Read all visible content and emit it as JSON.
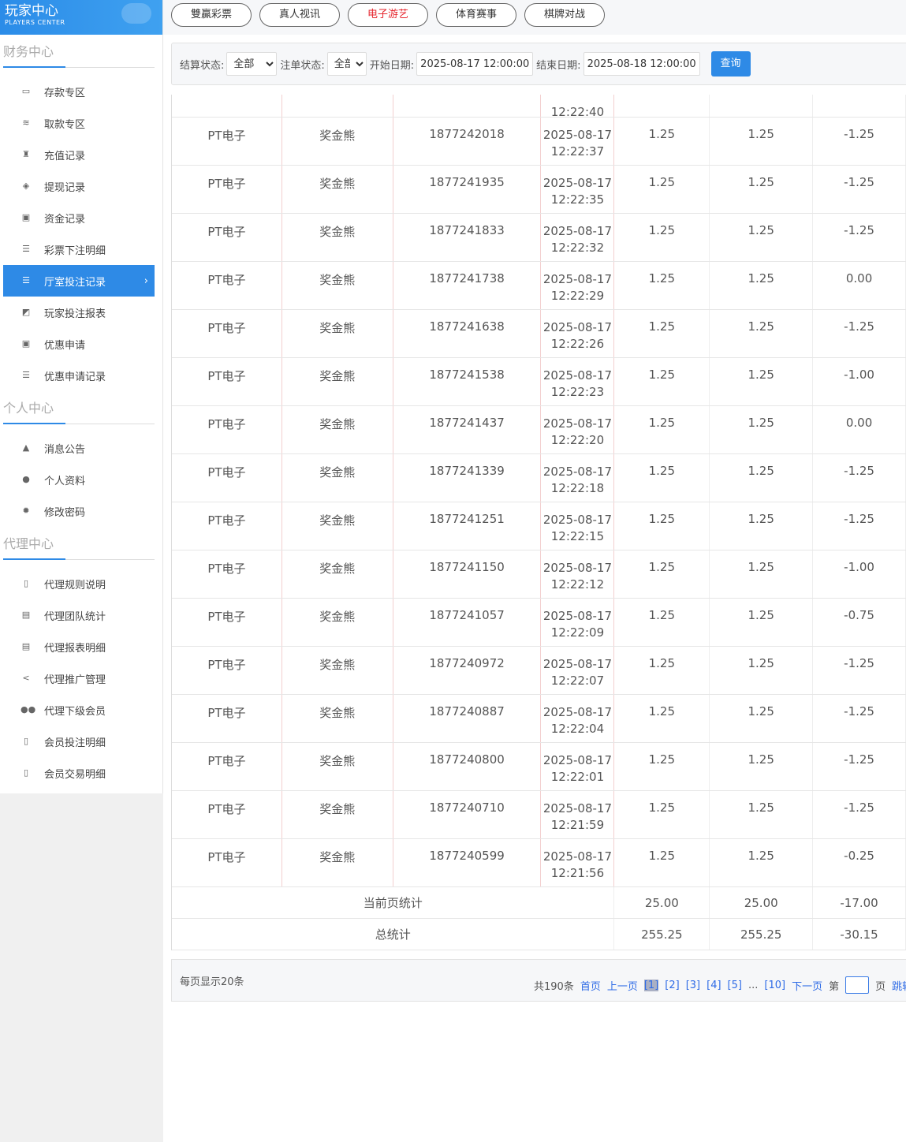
{
  "logo": {
    "title": "玩家中心",
    "subtitle": "PLAYERS CENTER"
  },
  "tabs": [
    {
      "label": "雙贏彩票",
      "color": "#333"
    },
    {
      "label": "真人视讯",
      "color": "#333"
    },
    {
      "label": "电子游艺",
      "color": "#e6262e"
    },
    {
      "label": "体育赛事",
      "color": "#333"
    },
    {
      "label": "棋牌对战",
      "color": "#333"
    }
  ],
  "sidebar": {
    "finance": {
      "title": "财务中心",
      "items": [
        {
          "label": "存款专区",
          "icon": "card-icon"
        },
        {
          "label": "取款专区",
          "icon": "cash-icon"
        },
        {
          "label": "充值记录",
          "icon": "bag-icon"
        },
        {
          "label": "提现记录",
          "icon": "withdraw-icon"
        },
        {
          "label": "资金记录",
          "icon": "money-icon"
        },
        {
          "label": "彩票下注明细",
          "icon": "list-icon"
        },
        {
          "label": "厅室投注记录",
          "icon": "list-icon",
          "active": true
        },
        {
          "label": "玩家投注报表",
          "icon": "chart-icon"
        },
        {
          "label": "优惠申请",
          "icon": "gift-icon"
        },
        {
          "label": "优惠申请记录",
          "icon": "list-icon"
        }
      ]
    },
    "personal": {
      "title": "个人中心",
      "items": [
        {
          "label": "消息公告",
          "icon": "bell-icon"
        },
        {
          "label": "个人资料",
          "icon": "user-icon"
        },
        {
          "label": "修改密码",
          "icon": "gear-icon"
        }
      ]
    },
    "agent": {
      "title": "代理中心",
      "items": [
        {
          "label": "代理规则说明",
          "icon": "document-icon"
        },
        {
          "label": "代理团队统计",
          "icon": "report-icon"
        },
        {
          "label": "代理报表明细",
          "icon": "report-icon"
        },
        {
          "label": "代理推广管理",
          "icon": "share-icon"
        },
        {
          "label": "代理下级会员",
          "icon": "users-icon"
        },
        {
          "label": "会员投注明细",
          "icon": "document-icon"
        },
        {
          "label": "会员交易明细",
          "icon": "document-icon"
        }
      ]
    }
  },
  "filter": {
    "settle_label": "结算状态:",
    "settle_value": "全部",
    "order_label": "注单状态:",
    "order_value": "全部",
    "start_label": "开始日期:",
    "start_value": "2025-08-17 12:00:00",
    "end_label": "结束日期:",
    "end_value": "2025-08-18 12:00:00",
    "query": "查询"
  },
  "table": {
    "partial_time": "12:22:40",
    "rows": [
      [
        "PT电子",
        "奖金熊",
        "1877242018",
        "2025-08-17",
        "12:22:37",
        "1.25",
        "1.25",
        "-1.25"
      ],
      [
        "PT电子",
        "奖金熊",
        "1877241935",
        "2025-08-17",
        "12:22:35",
        "1.25",
        "1.25",
        "-1.25"
      ],
      [
        "PT电子",
        "奖金熊",
        "1877241833",
        "2025-08-17",
        "12:22:32",
        "1.25",
        "1.25",
        "-1.25"
      ],
      [
        "PT电子",
        "奖金熊",
        "1877241738",
        "2025-08-17",
        "12:22:29",
        "1.25",
        "1.25",
        "0.00"
      ],
      [
        "PT电子",
        "奖金熊",
        "1877241638",
        "2025-08-17",
        "12:22:26",
        "1.25",
        "1.25",
        "-1.25"
      ],
      [
        "PT电子",
        "奖金熊",
        "1877241538",
        "2025-08-17",
        "12:22:23",
        "1.25",
        "1.25",
        "-1.00"
      ],
      [
        "PT电子",
        "奖金熊",
        "1877241437",
        "2025-08-17",
        "12:22:20",
        "1.25",
        "1.25",
        "0.00"
      ],
      [
        "PT电子",
        "奖金熊",
        "1877241339",
        "2025-08-17",
        "12:22:18",
        "1.25",
        "1.25",
        "-1.25"
      ],
      [
        "PT电子",
        "奖金熊",
        "1877241251",
        "2025-08-17",
        "12:22:15",
        "1.25",
        "1.25",
        "-1.25"
      ],
      [
        "PT电子",
        "奖金熊",
        "1877241150",
        "2025-08-17",
        "12:22:12",
        "1.25",
        "1.25",
        "-1.00"
      ],
      [
        "PT电子",
        "奖金熊",
        "1877241057",
        "2025-08-17",
        "12:22:09",
        "1.25",
        "1.25",
        "-0.75"
      ],
      [
        "PT电子",
        "奖金熊",
        "1877240972",
        "2025-08-17",
        "12:22:07",
        "1.25",
        "1.25",
        "-1.25"
      ],
      [
        "PT电子",
        "奖金熊",
        "1877240887",
        "2025-08-17",
        "12:22:04",
        "1.25",
        "1.25",
        "-1.25"
      ],
      [
        "PT电子",
        "奖金熊",
        "1877240800",
        "2025-08-17",
        "12:22:01",
        "1.25",
        "1.25",
        "-1.25"
      ],
      [
        "PT电子",
        "奖金熊",
        "1877240710",
        "2025-08-17",
        "12:21:59",
        "1.25",
        "1.25",
        "-1.25"
      ],
      [
        "PT电子",
        "奖金熊",
        "1877240599",
        "2025-08-17",
        "12:21:56",
        "1.25",
        "1.25",
        "-0.25"
      ]
    ],
    "page_sum": {
      "label": "当前页统计",
      "bet": "25.00",
      "valid": "25.00",
      "win": "-17.00"
    },
    "total_sum": {
      "label": "总统计",
      "bet": "255.25",
      "valid": "255.25",
      "win": "-30.15"
    }
  },
  "pager": {
    "per_page": "每页显示20条",
    "total": "共190条",
    "first": "首页",
    "prev": "上一页",
    "pages": [
      "[1]",
      "[2]",
      "[3]",
      "[4]",
      "[5]"
    ],
    "ellipsis": "...",
    "last_page": "[10]",
    "next": "下一页",
    "go_prefix": "第",
    "go_suffix": "页",
    "jump": "跳转"
  }
}
